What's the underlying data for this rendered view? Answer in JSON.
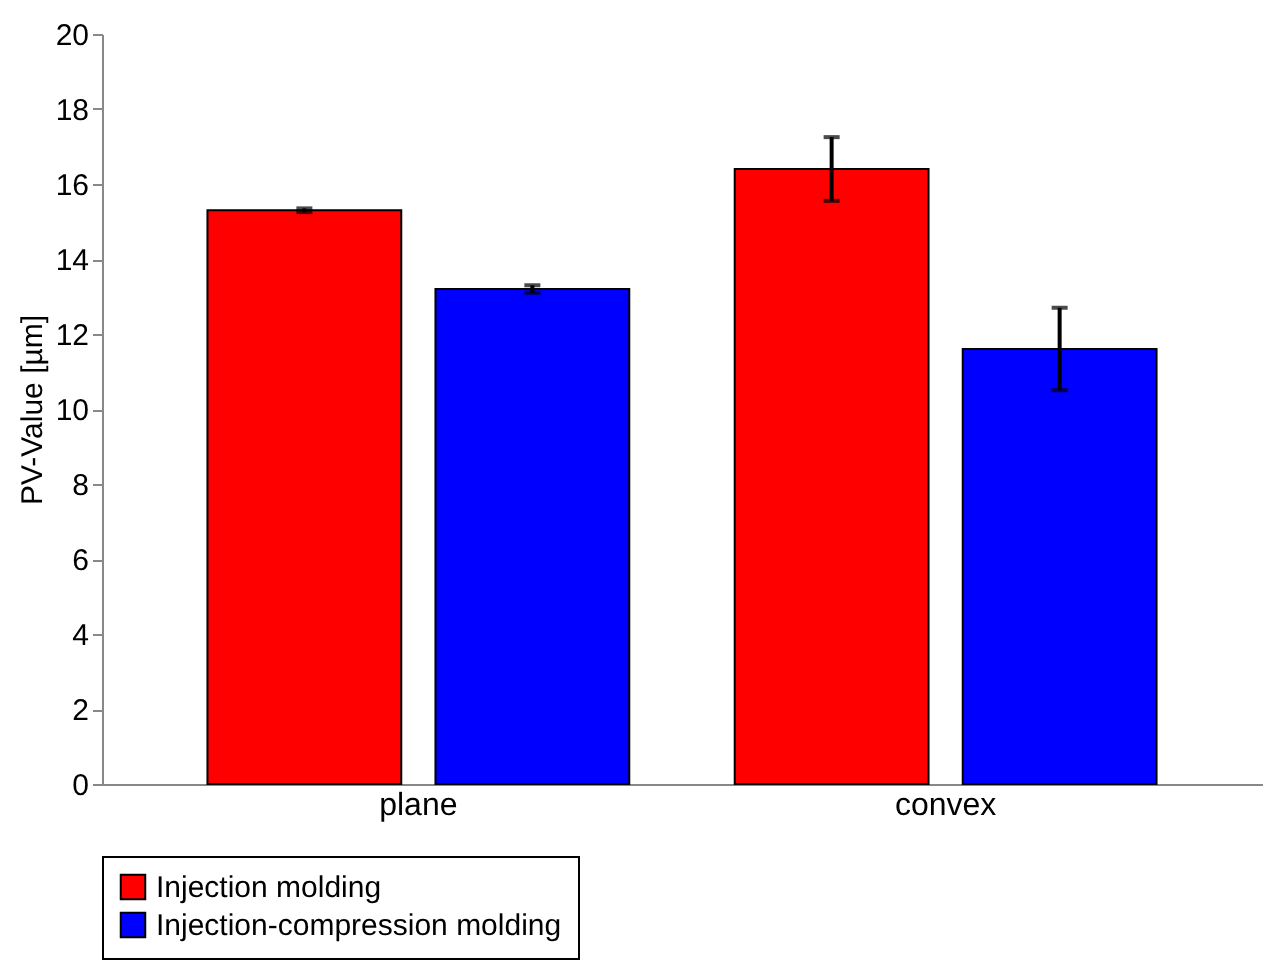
{
  "chart_data": {
    "type": "bar",
    "ylabel": "PV-Value  [µm]",
    "categories": [
      "plane",
      "convex"
    ],
    "series": [
      {
        "name": "Injection molding",
        "color": "#ff0000",
        "values": [
          15.3,
          16.4
        ],
        "errors": [
          0.05,
          0.85
        ]
      },
      {
        "name": "Injection-compression molding",
        "color": "#0000ff",
        "values": [
          13.2,
          11.6
        ],
        "errors": [
          0.1,
          1.1
        ]
      }
    ],
    "ylim": [
      0,
      20
    ],
    "yticks": [
      0,
      2,
      4,
      6,
      8,
      10,
      12,
      14,
      16,
      18,
      20
    ],
    "grid": false,
    "legend": "bottom"
  }
}
